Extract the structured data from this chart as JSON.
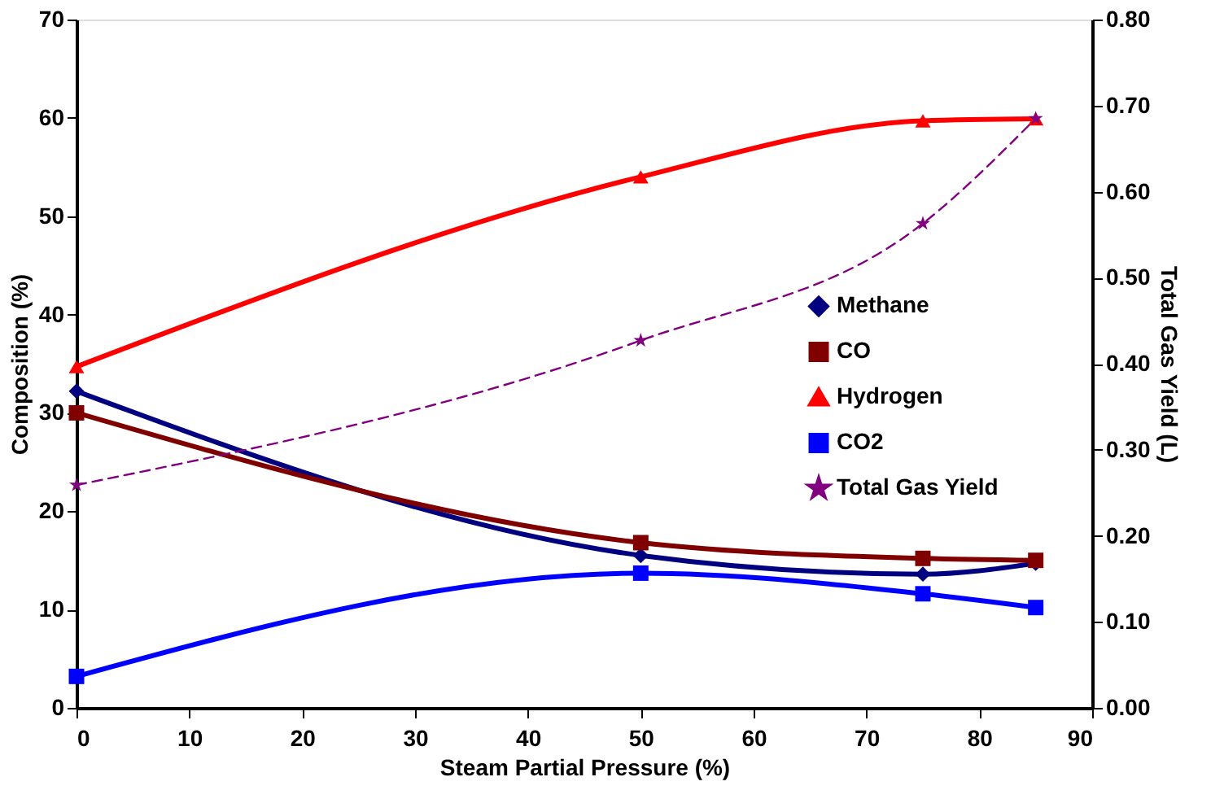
{
  "chart_data": {
    "type": "line",
    "x": [
      0,
      50,
      75,
      85
    ],
    "xlabel": "Steam Partial Pressure (%)",
    "ylabel": "Composition (%)",
    "y2label": "Total Gas Yield (L)",
    "xlim": [
      0,
      90
    ],
    "xticks": [
      0,
      10,
      20,
      30,
      40,
      50,
      60,
      70,
      80,
      90
    ],
    "ylim": [
      0,
      70
    ],
    "yticks": [
      0,
      10,
      20,
      30,
      40,
      50,
      60,
      70
    ],
    "y2lim": [
      0,
      0.8
    ],
    "y2ticks": [
      {
        "value": 0,
        "label": "0.00"
      },
      {
        "value": 0.1,
        "label": "0.10"
      },
      {
        "value": 0.2,
        "label": "0.20"
      },
      {
        "value": 0.3,
        "label": "0.30"
      },
      {
        "value": 0.4,
        "label": "0.40"
      },
      {
        "value": 0.5,
        "label": "0.50"
      },
      {
        "value": 0.6,
        "label": "0.60"
      },
      {
        "value": 0.7,
        "label": "0.70"
      },
      {
        "value": 0.8,
        "label": "0.80"
      }
    ],
    "grid": false,
    "legend": "right",
    "series": [
      {
        "name": "Methane",
        "color": "#000080",
        "marker": "diamond",
        "line_style": "solid",
        "values": [
          32.2,
          15.5,
          13.6,
          14.7
        ]
      },
      {
        "name": "CO",
        "color": "#800000",
        "marker": "square",
        "line_style": "solid",
        "values": [
          30.0,
          16.8,
          15.2,
          15.0
        ]
      },
      {
        "name": "Hydrogen",
        "color": "#ff0000",
        "marker": "triangle",
        "line_style": "solid",
        "values": [
          34.7,
          54.0,
          59.7,
          59.9
        ]
      },
      {
        "name": "CO2",
        "color": "#0000ff",
        "marker": "square",
        "line_style": "solid",
        "values": [
          3.2,
          13.7,
          11.6,
          10.2
        ]
      },
      {
        "name": "Total Gas Yield",
        "color": "#800080",
        "marker": "star",
        "line_style": "dashed",
        "axis": "y2",
        "values": [
          0.259,
          0.427,
          0.563,
          0.685
        ]
      }
    ]
  }
}
